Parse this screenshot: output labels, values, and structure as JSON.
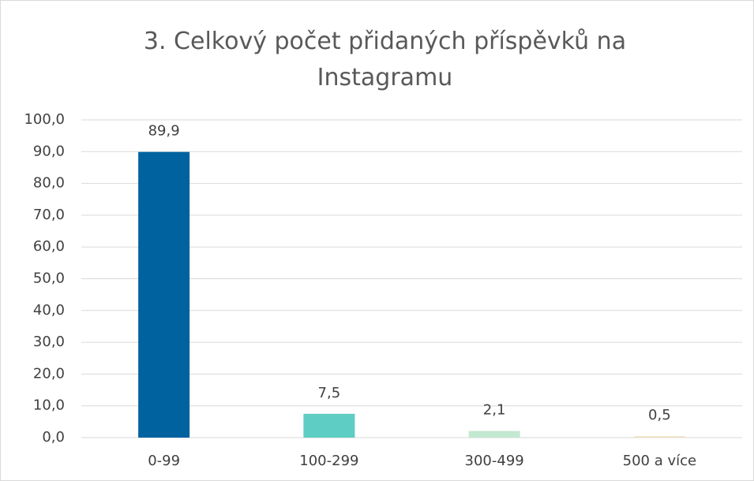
{
  "chart_data": {
    "type": "bar",
    "title": "3. Celkový počet přidaných příspěvků na Instagramu",
    "categories": [
      "0-99",
      "100-299",
      "300-499",
      "500 a více"
    ],
    "values": [
      89.9,
      7.5,
      2.1,
      0.5
    ],
    "value_labels": [
      "89,9",
      "7,5",
      "2,1",
      "0,5"
    ],
    "colors": [
      "#00629e",
      "#5ecdc3",
      "#c3e8d1",
      "#efe5c9"
    ],
    "ylim": [
      0,
      100
    ],
    "yticks": [
      {
        "value": 0,
        "label": "0,0"
      },
      {
        "value": 10,
        "label": "10,0"
      },
      {
        "value": 20,
        "label": "20,0"
      },
      {
        "value": 30,
        "label": "30,0"
      },
      {
        "value": 40,
        "label": "40,0"
      },
      {
        "value": 50,
        "label": "50,0"
      },
      {
        "value": 60,
        "label": "60,0"
      },
      {
        "value": 70,
        "label": "70,0"
      },
      {
        "value": 80,
        "label": "80,0"
      },
      {
        "value": 90,
        "label": "90,0"
      },
      {
        "value": 100,
        "label": "100,0"
      }
    ],
    "grid": true
  }
}
